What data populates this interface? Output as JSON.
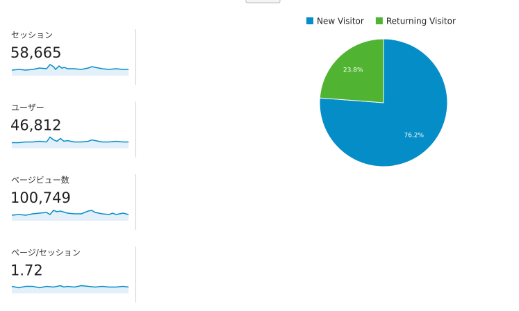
{
  "metrics": [
    {
      "label": "セッション",
      "value": "58,665"
    },
    {
      "label": "ユーザー",
      "value": "46,812"
    },
    {
      "label": "ページビュー数",
      "value": "100,749"
    },
    {
      "label": "ページ/セッション",
      "value": "1.72"
    }
  ],
  "chart_data": {
    "type": "pie",
    "categories": [
      "New Visitor",
      "Returning Visitor"
    ],
    "values": [
      76.2,
      23.8
    ],
    "value_labels": [
      "76.2%",
      "23.8%"
    ],
    "colors": [
      "#058dc7",
      "#50b432"
    ],
    "legend": "top"
  }
}
